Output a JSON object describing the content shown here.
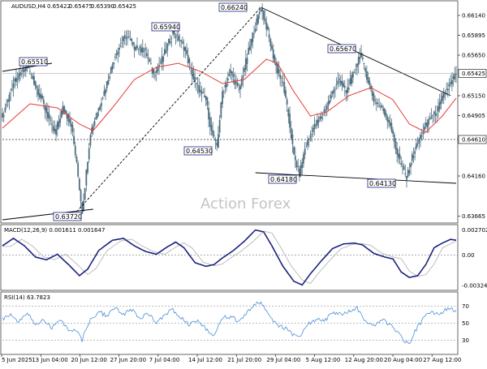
{
  "chart_data": [
    {
      "type": "candlestick",
      "panel": "price",
      "symbol": "AUDUSD,H4",
      "ohlc_header": [
        "0.65422",
        "0.65475",
        "0.65390",
        "0.65425"
      ],
      "current_price": "0.65425",
      "ylim": [
        0.636,
        0.663
      ],
      "y_ticks": [
        "0.66140",
        "0.65895",
        "0.65650",
        "0.65425",
        "0.65150",
        "0.64905",
        "0.64610",
        "0.64160",
        "0.63665"
      ],
      "y_tick_values": [
        0.6614,
        0.65895,
        0.6565,
        0.65425,
        0.6515,
        0.64905,
        0.6461,
        0.6416,
        0.63665
      ],
      "x_ticks": [
        "5 Jun 2025",
        "13 Jun 04:00",
        "20 Jun 12:00",
        "27 Jun 20:00",
        "7 Jul 04:00",
        "14 Jul 12:00",
        "21 Jul 20:00",
        "29 Jul 04:00",
        "5 Aug 12:00",
        "12 Aug 20:00",
        "20 Aug 04:00",
        "27 Aug 12:00"
      ],
      "key_levels": [
        {
          "label": "0.65510",
          "value": 0.6551
        },
        {
          "label": "0.63720",
          "value": 0.6372
        },
        {
          "label": "0.65940",
          "value": 0.6594
        },
        {
          "label": "0.64530",
          "value": 0.6453
        },
        {
          "label": "0.66240",
          "value": 0.6624
        },
        {
          "label": "0.64180",
          "value": 0.6418
        },
        {
          "label": "0.65670",
          "value": 0.6567
        },
        {
          "label": "0.64130",
          "value": 0.6413
        }
      ],
      "horizontal_line": {
        "label": "0.64610",
        "value": 0.6461,
        "style": "dashed"
      },
      "moving_average_color": "#e53935",
      "candle_color": "#4e6e80",
      "watermark": "Action Forex",
      "price_path": [
        [
          0,
          0.649
        ],
        [
          4,
          0.653
        ],
        [
          9,
          0.6552
        ],
        [
          14,
          0.6512
        ],
        [
          19,
          0.6468
        ],
        [
          22,
          0.65
        ],
        [
          25,
          0.648
        ],
        [
          27,
          0.643
        ],
        [
          29,
          0.6372
        ],
        [
          32,
          0.647
        ],
        [
          37,
          0.652
        ],
        [
          41,
          0.6565
        ],
        [
          45,
          0.659
        ],
        [
          48,
          0.6575
        ],
        [
          52,
          0.657
        ],
        [
          55,
          0.654
        ],
        [
          58,
          0.656
        ],
        [
          62,
          0.6594
        ],
        [
          66,
          0.6575
        ],
        [
          70,
          0.653
        ],
        [
          74,
          0.651
        ],
        [
          76,
          0.647
        ],
        [
          78,
          0.6453
        ],
        [
          80,
          0.652
        ],
        [
          83,
          0.6545
        ],
        [
          86,
          0.652
        ],
        [
          88,
          0.655
        ],
        [
          91,
          0.659
        ],
        [
          94,
          0.6624
        ],
        [
          96,
          0.66
        ],
        [
          98,
          0.657
        ],
        [
          100,
          0.6545
        ],
        [
          102,
          0.653
        ],
        [
          104,
          0.649
        ],
        [
          106,
          0.644
        ],
        [
          108,
          0.6418
        ],
        [
          110,
          0.645
        ],
        [
          113,
          0.6475
        ],
        [
          116,
          0.649
        ],
        [
          119,
          0.651
        ],
        [
          122,
          0.6535
        ],
        [
          125,
          0.652
        ],
        [
          128,
          0.6545
        ],
        [
          130,
          0.6567
        ],
        [
          132,
          0.6545
        ],
        [
          135,
          0.651
        ],
        [
          138,
          0.65
        ],
        [
          141,
          0.648
        ],
        [
          143,
          0.645
        ],
        [
          145,
          0.643
        ],
        [
          147,
          0.6413
        ],
        [
          149,
          0.644
        ],
        [
          152,
          0.6465
        ],
        [
          155,
          0.6485
        ],
        [
          158,
          0.6495
        ],
        [
          161,
          0.652
        ],
        [
          163,
          0.653
        ],
        [
          165,
          0.6542
        ]
      ],
      "ma_path": [
        [
          0,
          0.6475
        ],
        [
          10,
          0.6505
        ],
        [
          20,
          0.65
        ],
        [
          28,
          0.648
        ],
        [
          33,
          0.6472
        ],
        [
          40,
          0.65
        ],
        [
          48,
          0.6535
        ],
        [
          56,
          0.655
        ],
        [
          64,
          0.6555
        ],
        [
          72,
          0.6545
        ],
        [
          80,
          0.653
        ],
        [
          88,
          0.6535
        ],
        [
          96,
          0.656
        ],
        [
          100,
          0.6555
        ],
        [
          106,
          0.652
        ],
        [
          112,
          0.649
        ],
        [
          118,
          0.6495
        ],
        [
          126,
          0.6515
        ],
        [
          134,
          0.6525
        ],
        [
          142,
          0.651
        ],
        [
          148,
          0.648
        ],
        [
          154,
          0.647
        ],
        [
          160,
          0.649
        ],
        [
          165,
          0.6512
        ]
      ],
      "trendlines": [
        {
          "from": [
            0,
            0.6545
          ],
          "to": [
            18,
            0.6555
          ]
        },
        {
          "from": [
            0,
            0.6362
          ],
          "to": [
            33,
            0.6375
          ]
        },
        {
          "from": [
            27,
            0.6372
          ],
          "to": [
            94,
            0.6624
          ]
        },
        {
          "from": [
            94,
            0.6624
          ],
          "to": [
            163,
            0.6515
          ]
        },
        {
          "from": [
            92,
            0.642
          ],
          "to": [
            165,
            0.6407
          ]
        }
      ]
    },
    {
      "type": "line",
      "panel": "macd",
      "title": "MACD(12,26,9) 0.001611 0.001647",
      "y_ticks": [
        "0.002702",
        "0.00",
        "-0.003241"
      ],
      "ylim": [
        -0.0036,
        0.0031
      ],
      "series": [
        {
          "name": "MACD",
          "color": "#1a237e",
          "points": [
            [
              0,
              0.001
            ],
            [
              4,
              0.0018
            ],
            [
              8,
              0.001
            ],
            [
              12,
              -0.0002
            ],
            [
              16,
              -0.0005
            ],
            [
              20,
              0.0001
            ],
            [
              24,
              -0.001
            ],
            [
              28,
              -0.0022
            ],
            [
              31,
              -0.0015
            ],
            [
              35,
              0.0005
            ],
            [
              40,
              0.0016
            ],
            [
              44,
              0.0018
            ],
            [
              48,
              0.001
            ],
            [
              52,
              0.0004
            ],
            [
              56,
              0.0001
            ],
            [
              60,
              0.0009
            ],
            [
              63,
              0.0014
            ],
            [
              66,
              0.0008
            ],
            [
              70,
              -0.0008
            ],
            [
              74,
              -0.0012
            ],
            [
              77,
              -0.001
            ],
            [
              80,
              -0.0003
            ],
            [
              84,
              0.0005
            ],
            [
              88,
              0.0015
            ],
            [
              92,
              0.0027
            ],
            [
              95,
              0.0025
            ],
            [
              98,
              0.001
            ],
            [
              102,
              -0.0012
            ],
            [
              106,
              -0.0028
            ],
            [
              109,
              -0.0032
            ],
            [
              112,
              -0.002
            ],
            [
              116,
              -0.0006
            ],
            [
              120,
              0.0007
            ],
            [
              124,
              0.0012
            ],
            [
              128,
              0.0013
            ],
            [
              131,
              0.0011
            ],
            [
              135,
              0.0002
            ],
            [
              139,
              -0.0002
            ],
            [
              142,
              -0.0004
            ],
            [
              145,
              -0.0018
            ],
            [
              148,
              -0.0024
            ],
            [
              151,
              -0.0022
            ],
            [
              154,
              -0.001
            ],
            [
              157,
              0.0008
            ],
            [
              160,
              0.0013
            ],
            [
              163,
              0.0017
            ],
            [
              165,
              0.0016
            ]
          ]
        }
      ]
    },
    {
      "type": "line",
      "panel": "rsi",
      "title": "RSI(14) 63.7823",
      "y_ticks": [
        "70",
        "50",
        "30"
      ],
      "ylim": [
        15,
        85
      ],
      "series": [
        {
          "name": "RSI",
          "color": "#4a90d9",
          "points": [
            [
              0,
              55
            ],
            [
              3,
              60
            ],
            [
              6,
              52
            ],
            [
              9,
              62
            ],
            [
              12,
              48
            ],
            [
              15,
              54
            ],
            [
              18,
              45
            ],
            [
              21,
              55
            ],
            [
              24,
              42
            ],
            [
              27,
              40
            ],
            [
              29,
              30
            ],
            [
              32,
              55
            ],
            [
              35,
              64
            ],
            [
              38,
              58
            ],
            [
              41,
              68
            ],
            [
              44,
              60
            ],
            [
              47,
              66
            ],
            [
              50,
              55
            ],
            [
              53,
              62
            ],
            [
              56,
              50
            ],
            [
              59,
              60
            ],
            [
              62,
              66
            ],
            [
              65,
              56
            ],
            [
              68,
              48
            ],
            [
              71,
              54
            ],
            [
              74,
              42
            ],
            [
              77,
              36
            ],
            [
              80,
              56
            ],
            [
              83,
              58
            ],
            [
              86,
              52
            ],
            [
              89,
              64
            ],
            [
              92,
              72
            ],
            [
              94,
              74
            ],
            [
              97,
              58
            ],
            [
              100,
              48
            ],
            [
              103,
              44
            ],
            [
              106,
              36
            ],
            [
              108,
              32
            ],
            [
              111,
              48
            ],
            [
              114,
              55
            ],
            [
              117,
              52
            ],
            [
              120,
              62
            ],
            [
              123,
              60
            ],
            [
              126,
              64
            ],
            [
              129,
              68
            ],
            [
              132,
              52
            ],
            [
              135,
              46
            ],
            [
              138,
              54
            ],
            [
              141,
              48
            ],
            [
              144,
              38
            ],
            [
              146,
              30
            ],
            [
              148,
              26
            ],
            [
              150,
              40
            ],
            [
              153,
              56
            ],
            [
              156,
              64
            ],
            [
              159,
              60
            ],
            [
              162,
              68
            ],
            [
              165,
              64
            ]
          ]
        }
      ]
    }
  ]
}
